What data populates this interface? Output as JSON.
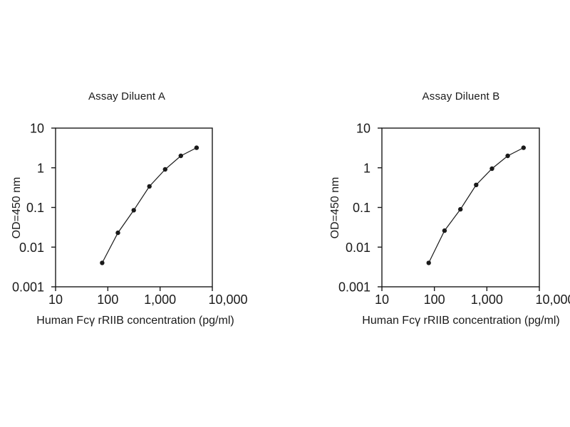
{
  "figure": {
    "background_color": "#ffffff",
    "foreground_color": "#1a1a1a",
    "description_names": [
      "elisa-standard-curve-panel-a",
      "elisa-standard-curve-panel-b"
    ]
  },
  "chart_data": [
    {
      "type": "line",
      "title": "Assay Diluent A",
      "xlabel": "Human Fcγ rRIIB concentration (pg/ml)",
      "ylabel": "OD=450 nm",
      "x_scale": "log",
      "y_scale": "log",
      "xlim": [
        10,
        10000
      ],
      "ylim": [
        0.001,
        10
      ],
      "grid": false,
      "legend": "none",
      "x_ticks": [
        {
          "value": 10,
          "label": "10"
        },
        {
          "value": 100,
          "label": "100"
        },
        {
          "value": 1000,
          "label": "1,000"
        },
        {
          "value": 10000,
          "label": "10,000"
        }
      ],
      "y_ticks": [
        {
          "value": 10,
          "label": "10"
        },
        {
          "value": 1,
          "label": "1"
        },
        {
          "value": 0.1,
          "label": "0.1"
        },
        {
          "value": 0.01,
          "label": "0.01"
        },
        {
          "value": 0.001,
          "label": "0.001"
        }
      ],
      "series": [
        {
          "name": "standard-curve",
          "marker": "filled-circle",
          "color": "#1a1a1a",
          "x": [
            78,
            156,
            313,
            625,
            1250,
            2500,
            5000
          ],
          "y": [
            0.004,
            0.023,
            0.085,
            0.34,
            0.91,
            2.0,
            3.2
          ]
        }
      ]
    },
    {
      "type": "line",
      "title": "Assay Diluent B",
      "xlabel": "Human Fcγ rRIIB concentration (pg/ml)",
      "ylabel": "OD=450 nm",
      "x_scale": "log",
      "y_scale": "log",
      "xlim": [
        10,
        10000
      ],
      "ylim": [
        0.001,
        10
      ],
      "grid": false,
      "legend": "none",
      "x_ticks": [
        {
          "value": 10,
          "label": "10"
        },
        {
          "value": 100,
          "label": "100"
        },
        {
          "value": 1000,
          "label": "1,000"
        },
        {
          "value": 10000,
          "label": "10,000"
        }
      ],
      "y_ticks": [
        {
          "value": 10,
          "label": "10"
        },
        {
          "value": 1,
          "label": "1"
        },
        {
          "value": 0.1,
          "label": "0.1"
        },
        {
          "value": 0.01,
          "label": "0.01"
        },
        {
          "value": 0.001,
          "label": "0.001"
        }
      ],
      "series": [
        {
          "name": "standard-curve",
          "marker": "filled-circle",
          "color": "#1a1a1a",
          "x": [
            78,
            156,
            313,
            625,
            1250,
            2500,
            5000
          ],
          "y": [
            0.004,
            0.026,
            0.09,
            0.37,
            0.95,
            2.0,
            3.2
          ]
        }
      ]
    }
  ]
}
